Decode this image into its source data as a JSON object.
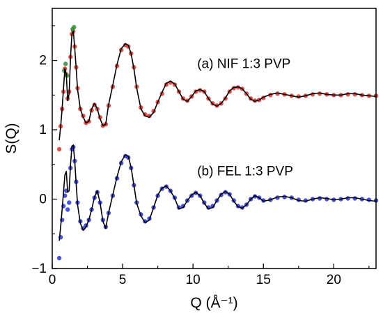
{
  "chart_data": {
    "type": "line",
    "xlabel": "Q (Å⁻¹)",
    "ylabel": "S(Q)",
    "xlim": [
      0,
      23
    ],
    "ylim": [
      -1,
      2.75
    ],
    "x_ticks": [
      {
        "value": 0,
        "label": "0"
      },
      {
        "value": 5,
        "label": "5"
      },
      {
        "value": 10,
        "label": "10"
      },
      {
        "value": 15,
        "label": "15"
      },
      {
        "value": 20,
        "label": "20"
      }
    ],
    "y_ticks": [
      {
        "value": -1,
        "label": "−1"
      },
      {
        "value": 0,
        "label": "0"
      },
      {
        "value": 1,
        "label": "1"
      },
      {
        "value": 2,
        "label": "2"
      }
    ],
    "annotations": [
      {
        "text": "(a) NIF 1:3 PVP",
        "x": 10.3,
        "y": 1.95
      },
      {
        "text": "(b) FEL 1:3 PVP",
        "x": 10.3,
        "y": 0.4
      }
    ],
    "grid": false,
    "series": [
      {
        "role": "experimental data (a)",
        "color": "#d9352a",
        "style": "markers",
        "x": [
          0.5,
          0.6,
          0.7,
          0.8,
          0.9,
          1.0,
          1.1,
          1.2,
          1.3,
          1.4,
          1.5,
          1.6,
          1.7,
          1.8,
          2.0,
          2.2,
          2.4,
          2.6,
          2.8,
          3.0,
          3.2,
          3.4,
          3.6,
          3.8,
          4.0,
          4.3,
          4.6,
          4.9,
          5.2,
          5.4,
          5.6,
          5.8,
          6.0,
          6.3,
          6.6,
          6.9,
          7.2,
          7.5,
          7.8,
          8.1,
          8.4,
          8.7,
          9.0,
          9.3,
          9.6,
          9.9,
          10.2,
          10.5,
          10.8,
          11.1,
          11.4,
          11.7,
          12.0,
          12.3,
          12.6,
          12.9,
          13.2,
          13.5,
          13.8,
          14.1,
          14.4,
          14.7,
          15.0,
          15.5,
          16.0,
          16.5,
          17.0,
          17.5,
          18.0,
          18.5,
          19.0,
          19.5,
          20.0,
          20.5,
          21.0,
          21.5,
          22.0,
          22.5,
          23.0
        ],
        "values": [
          0.72,
          1.05,
          1.3,
          1.55,
          1.88,
          1.8,
          1.45,
          1.55,
          2.05,
          2.38,
          2.42,
          2.2,
          1.9,
          1.6,
          1.3,
          1.2,
          1.1,
          1.12,
          1.28,
          1.36,
          1.3,
          1.18,
          1.06,
          1.08,
          1.35,
          1.62,
          1.92,
          2.15,
          2.22,
          2.2,
          2.1,
          1.9,
          1.62,
          1.32,
          1.22,
          1.2,
          1.27,
          1.4,
          1.52,
          1.65,
          1.68,
          1.65,
          1.55,
          1.45,
          1.42,
          1.48,
          1.55,
          1.57,
          1.55,
          1.45,
          1.38,
          1.35,
          1.38,
          1.45,
          1.55,
          1.6,
          1.61,
          1.59,
          1.52,
          1.45,
          1.42,
          1.43,
          1.46,
          1.5,
          1.52,
          1.51,
          1.49,
          1.48,
          1.49,
          1.51,
          1.52,
          1.51,
          1.5,
          1.5,
          1.51,
          1.51,
          1.5,
          1.49,
          1.49
        ]
      },
      {
        "role": "experimental data (a) low-Q",
        "color": "#2f8f3a",
        "style": "markers",
        "x": [
          0.85,
          0.95,
          1.05,
          1.45,
          1.55
        ],
        "values": [
          1.85,
          1.95,
          1.78,
          2.45,
          2.48
        ]
      },
      {
        "role": "model fit (a)",
        "color": "#000000",
        "style": "line",
        "x": [
          0.5,
          0.6,
          0.7,
          0.8,
          0.9,
          1.0,
          1.1,
          1.2,
          1.3,
          1.4,
          1.5,
          1.6,
          1.7,
          1.8,
          2.0,
          2.2,
          2.4,
          2.6,
          2.8,
          3.0,
          3.2,
          3.4,
          3.6,
          3.8,
          4.0,
          4.3,
          4.6,
          4.9,
          5.2,
          5.4,
          5.6,
          5.8,
          6.0,
          6.3,
          6.6,
          6.9,
          7.2,
          7.5,
          7.8,
          8.1,
          8.4,
          8.7,
          9.0,
          9.3,
          9.6,
          9.9,
          10.2,
          10.5,
          10.8,
          11.1,
          11.4,
          11.7,
          12.0,
          12.3,
          12.6,
          12.9,
          13.2,
          13.5,
          13.8,
          14.1,
          14.4,
          14.7,
          15.0,
          15.5,
          16.0,
          16.5,
          17.0,
          17.5,
          18.0,
          18.5,
          19.0,
          19.5,
          20.0,
          20.5,
          21.0,
          21.5,
          22.0,
          22.5,
          23.0
        ],
        "values": [
          0.85,
          1.05,
          1.3,
          1.6,
          1.88,
          1.8,
          1.42,
          1.52,
          2.05,
          2.38,
          2.42,
          2.18,
          1.88,
          1.58,
          1.3,
          1.18,
          1.1,
          1.12,
          1.3,
          1.38,
          1.3,
          1.16,
          1.06,
          1.08,
          1.36,
          1.64,
          1.94,
          2.17,
          2.24,
          2.22,
          2.1,
          1.88,
          1.6,
          1.3,
          1.2,
          1.18,
          1.25,
          1.4,
          1.54,
          1.67,
          1.7,
          1.66,
          1.55,
          1.44,
          1.41,
          1.48,
          1.56,
          1.58,
          1.55,
          1.45,
          1.37,
          1.34,
          1.38,
          1.46,
          1.56,
          1.61,
          1.62,
          1.59,
          1.52,
          1.44,
          1.41,
          1.43,
          1.47,
          1.51,
          1.53,
          1.51,
          1.49,
          1.47,
          1.49,
          1.52,
          1.53,
          1.51,
          1.5,
          1.5,
          1.52,
          1.52,
          1.5,
          1.49,
          1.48
        ]
      },
      {
        "role": "experimental data (b)",
        "color": "#2a35d6",
        "style": "markers",
        "x": [
          0.5,
          0.6,
          0.7,
          0.8,
          0.9,
          1.0,
          1.1,
          1.2,
          1.3,
          1.4,
          1.5,
          1.6,
          1.7,
          1.8,
          2.0,
          2.2,
          2.4,
          2.6,
          2.8,
          3.0,
          3.2,
          3.4,
          3.6,
          3.8,
          4.0,
          4.3,
          4.6,
          4.9,
          5.2,
          5.4,
          5.6,
          5.8,
          6.0,
          6.3,
          6.6,
          6.9,
          7.2,
          7.5,
          7.8,
          8.1,
          8.4,
          8.7,
          9.0,
          9.3,
          9.6,
          9.9,
          10.2,
          10.5,
          10.8,
          11.1,
          11.4,
          11.7,
          12.0,
          12.3,
          12.6,
          12.9,
          13.2,
          13.5,
          13.8,
          14.1,
          14.4,
          14.7,
          15.0,
          15.5,
          16.0,
          16.5,
          17.0,
          17.5,
          18.0,
          18.5,
          19.0,
          19.5,
          20.0,
          20.5,
          21.0,
          21.5,
          22.0,
          22.5,
          23.0
        ],
        "values": [
          -0.85,
          -0.55,
          -0.3,
          -0.1,
          0.05,
          0.12,
          -0.15,
          -0.05,
          0.45,
          0.72,
          0.75,
          0.55,
          0.25,
          -0.05,
          -0.32,
          -0.42,
          -0.38,
          -0.3,
          -0.15,
          0.02,
          0.1,
          -0.05,
          -0.3,
          -0.4,
          -0.2,
          0.05,
          0.3,
          0.52,
          0.62,
          0.6,
          0.45,
          0.2,
          -0.05,
          -0.22,
          -0.32,
          -0.28,
          -0.12,
          0.05,
          0.15,
          0.18,
          0.12,
          0.02,
          -0.12,
          -0.1,
          -0.02,
          0.05,
          0.09,
          0.05,
          -0.05,
          -0.12,
          -0.1,
          -0.02,
          0.06,
          0.1,
          0.07,
          -0.02,
          -0.1,
          -0.12,
          -0.08,
          0.0,
          0.04,
          0.02,
          -0.02,
          -0.01,
          0.02,
          0.03,
          0.02,
          -0.01,
          -0.02,
          0.0,
          0.01,
          0.0,
          -0.01,
          0.0,
          0.01,
          0.01,
          0.0,
          -0.01,
          -0.02
        ]
      },
      {
        "role": "model fit (b)",
        "color": "#000000",
        "style": "line",
        "x": [
          0.5,
          0.6,
          0.7,
          0.8,
          0.9,
          1.0,
          1.1,
          1.2,
          1.3,
          1.4,
          1.5,
          1.6,
          1.7,
          1.8,
          2.0,
          2.2,
          2.4,
          2.6,
          2.8,
          3.0,
          3.2,
          3.4,
          3.6,
          3.8,
          4.0,
          4.3,
          4.6,
          4.9,
          5.2,
          5.4,
          5.6,
          5.8,
          6.0,
          6.3,
          6.6,
          6.9,
          7.2,
          7.5,
          7.8,
          8.1,
          8.4,
          8.7,
          9.0,
          9.3,
          9.6,
          9.9,
          10.2,
          10.5,
          10.8,
          11.1,
          11.4,
          11.7,
          12.0,
          12.3,
          12.6,
          12.9,
          13.2,
          13.5,
          13.8,
          14.1,
          14.4,
          14.7,
          15.0,
          15.5,
          16.0,
          16.5,
          17.0,
          17.5,
          18.0,
          18.5,
          19.0,
          19.5,
          20.0,
          20.5,
          21.0,
          21.5,
          22.0,
          22.5,
          23.0
        ],
        "values": [
          -0.6,
          -0.4,
          -0.15,
          0.1,
          0.35,
          0.4,
          0.1,
          0.12,
          0.5,
          0.76,
          0.78,
          0.55,
          0.22,
          -0.08,
          -0.35,
          -0.45,
          -0.4,
          -0.3,
          -0.15,
          0.03,
          0.12,
          -0.05,
          -0.32,
          -0.42,
          -0.2,
          0.06,
          0.32,
          0.54,
          0.64,
          0.62,
          0.46,
          0.2,
          -0.06,
          -0.24,
          -0.34,
          -0.3,
          -0.12,
          0.06,
          0.16,
          0.19,
          0.12,
          0.01,
          -0.14,
          -0.12,
          -0.02,
          0.06,
          0.1,
          0.05,
          -0.06,
          -0.14,
          -0.12,
          -0.02,
          0.07,
          0.11,
          0.07,
          -0.03,
          -0.11,
          -0.13,
          -0.08,
          0.0,
          0.05,
          0.02,
          -0.03,
          -0.01,
          0.03,
          0.04,
          0.02,
          -0.02,
          -0.03,
          0.0,
          0.02,
          0.01,
          -0.01,
          0.0,
          0.02,
          0.02,
          0.0,
          -0.02,
          -0.03
        ]
      }
    ]
  }
}
